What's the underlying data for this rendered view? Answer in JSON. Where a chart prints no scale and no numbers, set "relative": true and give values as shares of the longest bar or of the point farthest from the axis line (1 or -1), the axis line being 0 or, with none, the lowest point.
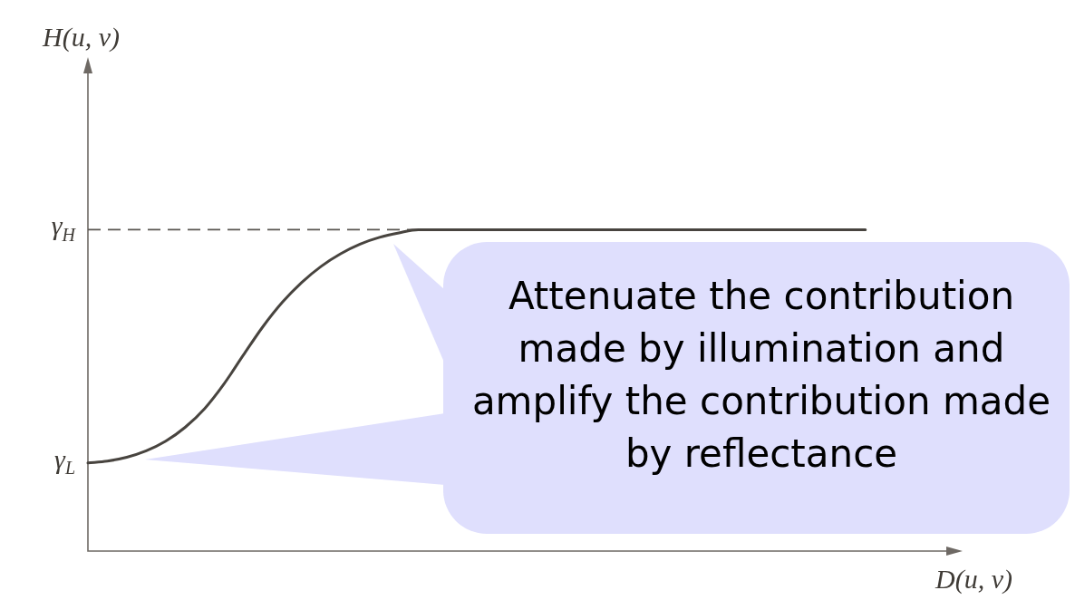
{
  "chart_data": {
    "type": "line",
    "relative": true,
    "marker": "none",
    "line_style": "solid",
    "xlabel": "D(u, v)",
    "categories": [
      null,
      null,
      null,
      null,
      null,
      null,
      null,
      null,
      null,
      null,
      null,
      null,
      null,
      null,
      null,
      null,
      null,
      null,
      null,
      null,
      null,
      null,
      null,
      null,
      null,
      null,
      null,
      null,
      null,
      null,
      null,
      null,
      null,
      null,
      null,
      null,
      null,
      null,
      null,
      null,
      null,
      null,
      null,
      null,
      null,
      null
    ],
    "series": [
      {
        "color": "#48443f",
        "values": [
          0.274,
          0.28,
          0.292,
          0.312,
          0.342,
          0.385,
          0.443,
          0.52,
          0.61,
          0.698,
          0.774,
          0.836,
          0.886,
          0.925,
          0.955,
          0.976,
          0.99,
          1,
          1,
          1,
          1,
          1,
          1,
          1,
          1,
          1,
          1,
          1,
          1,
          1,
          1,
          1,
          1,
          1,
          1,
          1,
          1,
          1,
          1,
          1,
          1,
          null,
          null,
          null,
          null,
          null
        ]
      }
    ],
    "ref_lines": [
      {
        "axis": "y",
        "value": 1,
        "label": "γ$_{H}$",
        "line_style": "dashed",
        "color": "#5a5651"
      }
    ],
    "annotations": [
      "H(u, v)",
      "γ$_{L}$",
      "Attenuate the contribution made by illumination and amplify the contribution made by reflectance"
    ]
  }
}
